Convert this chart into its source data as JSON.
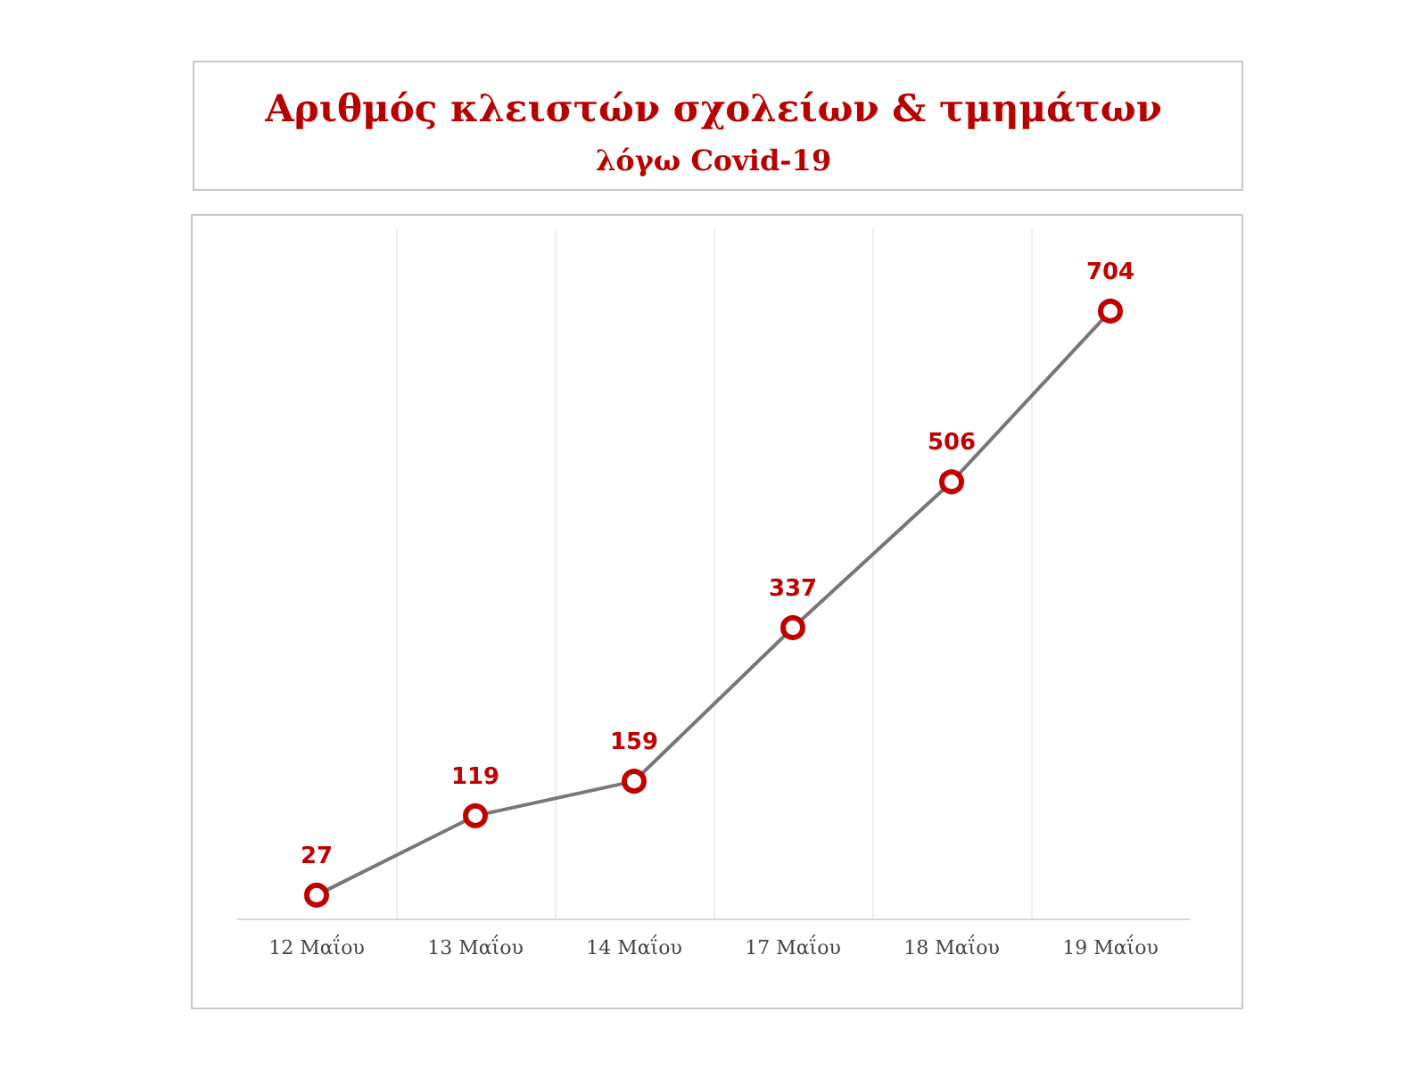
{
  "chart_data": {
    "type": "line",
    "title": "Αριθμός κλειστών σχολείων & τμημάτων",
    "subtitle": "λόγω Covid-19",
    "categories": [
      "12 Μαΐου",
      "13 Μαΐου",
      "14 Μαΐου",
      "17 Μαΐου",
      "18 Μαΐου",
      "19 Μαΐου"
    ],
    "series": [
      {
        "color": "#777777",
        "colors": [
          "#c00000",
          "#c00000",
          "#c00000",
          "#c00000",
          "#c00000",
          "#c00000"
        ],
        "values": [
          27,
          119,
          159,
          337,
          506,
          704
        ]
      }
    ],
    "data_labels": true,
    "grid": "x",
    "marker": "circle",
    "line_style": "solid",
    "tick_labels": "x"
  }
}
